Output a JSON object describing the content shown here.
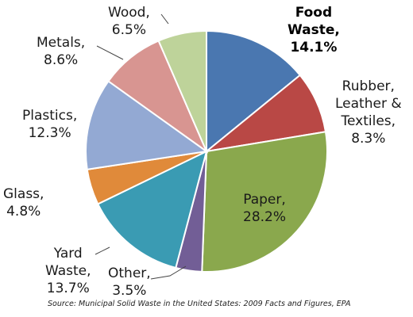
{
  "chart_data": {
    "type": "pie",
    "slices": [
      {
        "name": "Food Waste",
        "value": 14.1,
        "pct_label": "14.1%",
        "color": "#4a77b0"
      },
      {
        "name": "Rubber, Leather & Textiles",
        "value": 8.3,
        "pct_label": "8.3%",
        "color": "#b94845"
      },
      {
        "name": "Paper",
        "value": 28.2,
        "pct_label": "28.2%",
        "color": "#8aa84d"
      },
      {
        "name": "Other",
        "value": 3.5,
        "pct_label": "3.5%",
        "color": "#725e96"
      },
      {
        "name": "Yard Waste",
        "value": 13.7,
        "pct_label": "13.7%",
        "color": "#3a9bb3"
      },
      {
        "name": "Glass",
        "value": 4.8,
        "pct_label": "4.8%",
        "color": "#e08a3a"
      },
      {
        "name": "Plastics",
        "value": 12.3,
        "pct_label": "12.3%",
        "color": "#93a9d3"
      },
      {
        "name": "Metals",
        "value": 8.6,
        "pct_label": "8.6%",
        "color": "#d89591"
      },
      {
        "name": "Wood",
        "value": 6.5,
        "pct_label": "6.5%",
        "color": "#bed39a"
      }
    ],
    "labels": {
      "food": {
        "l1": "Food",
        "l2": "Waste,",
        "l3": "14.1%"
      },
      "rubber": {
        "l1": "Rubber,",
        "l2": "Leather &",
        "l3": "Textiles,",
        "l4": "8.3%"
      },
      "paper": {
        "l1": "Paper,",
        "l2": "28.2%"
      },
      "other": {
        "l1": "Other,",
        "l2": "3.5%"
      },
      "yard": {
        "l1": "Yard",
        "l2": "Waste,",
        "l3": "13.7%"
      },
      "glass": {
        "l1": "Glass,",
        "l2": "4.8%"
      },
      "plastics": {
        "l1": "Plastics,",
        "l2": "12.3%"
      },
      "metals": {
        "l1": "Metals,",
        "l2": "8.6%"
      },
      "wood": {
        "l1": "Wood,",
        "l2": "6.5%"
      }
    },
    "source": "Source:  Municipal Solid Waste in the United States: 2009 Facts and Figures, EPA"
  }
}
